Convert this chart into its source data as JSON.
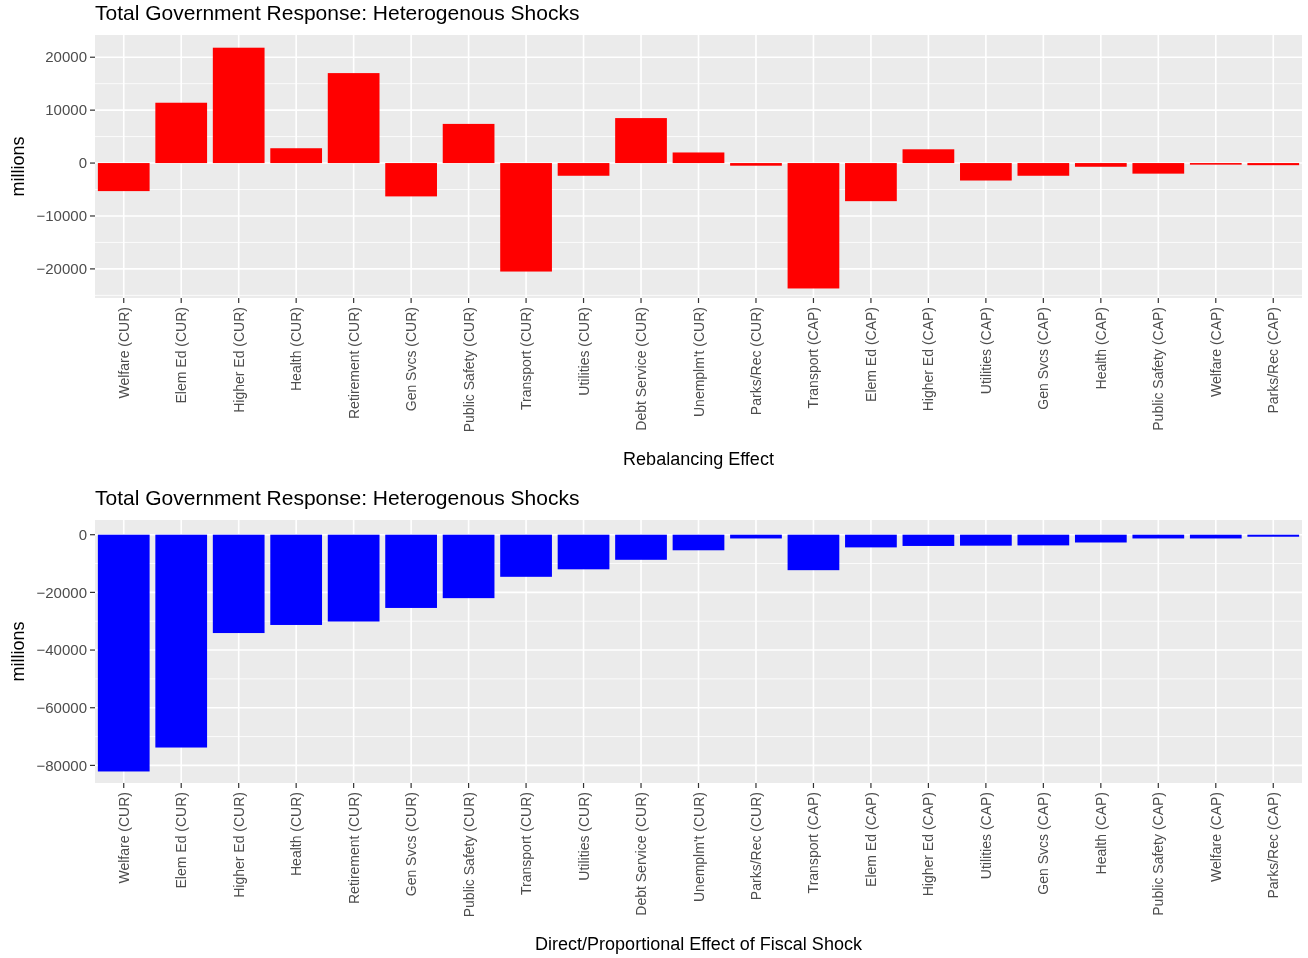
{
  "chart_data": [
    {
      "type": "bar",
      "title": "Total Government Response: Heterogenous Shocks",
      "xlabel": "Rebalancing Effect",
      "ylabel": "millions",
      "categories": [
        "Welfare (CUR)",
        "Elem Ed (CUR)",
        "Higher Ed (CUR)",
        "Health (CUR)",
        "Retirement (CUR)",
        "Gen Svcs (CUR)",
        "Public Safety (CUR)",
        "Transport (CUR)",
        "Utilities (CUR)",
        "Debt Service (CUR)",
        "Unemplm't (CUR)",
        "Parks/Rec (CUR)",
        "Transport (CAP)",
        "Elem Ed (CAP)",
        "Higher Ed (CAP)",
        "Utilities (CAP)",
        "Gen Svcs (CAP)",
        "Health (CAP)",
        "Public Safety (CAP)",
        "Welfare (CAP)",
        "Parks/Rec (CAP)"
      ],
      "values": [
        -5300,
        11400,
        21800,
        2800,
        17000,
        -6300,
        7400,
        -20500,
        -2400,
        8500,
        2000,
        -500,
        -23700,
        -7200,
        2600,
        -3300,
        -2400,
        -700,
        -2000,
        -300,
        -400
      ],
      "color": "#ff0000",
      "ylim": [
        -25500,
        24200
      ],
      "yticks": [
        -20000,
        -10000,
        0,
        10000,
        20000
      ],
      "grid": true
    },
    {
      "type": "bar",
      "title": "Total Government Response: Heterogenous Shocks",
      "xlabel": "Direct/Proportional Effect of Fiscal Shock",
      "ylabel": "millions",
      "categories": [
        "Welfare (CUR)",
        "Elem Ed (CUR)",
        "Higher Ed (CUR)",
        "Health (CUR)",
        "Retirement (CUR)",
        "Gen Svcs (CUR)",
        "Public Safety (CUR)",
        "Transport (CUR)",
        "Utilities (CUR)",
        "Debt Service (CUR)",
        "Unemplm't (CUR)",
        "Parks/Rec (CUR)",
        "Transport (CAP)",
        "Elem Ed (CAP)",
        "Higher Ed (CAP)",
        "Utilities (CAP)",
        "Gen Svcs (CAP)",
        "Health (CAP)",
        "Public Safety (CAP)",
        "Welfare (CAP)",
        "Parks/Rec (CAP)"
      ],
      "values": [
        -82100,
        -73800,
        -34100,
        -31300,
        -30100,
        -25400,
        -22000,
        -14600,
        -12000,
        -8700,
        -5400,
        -1300,
        -12300,
        -4400,
        -3900,
        -3800,
        -3700,
        -2700,
        -1300,
        -1300,
        -700
      ],
      "color": "#0000ff",
      "ylim": [
        -86100,
        5100
      ],
      "yticks": [
        -80000,
        -60000,
        -40000,
        -20000,
        0
      ],
      "grid": true
    }
  ]
}
